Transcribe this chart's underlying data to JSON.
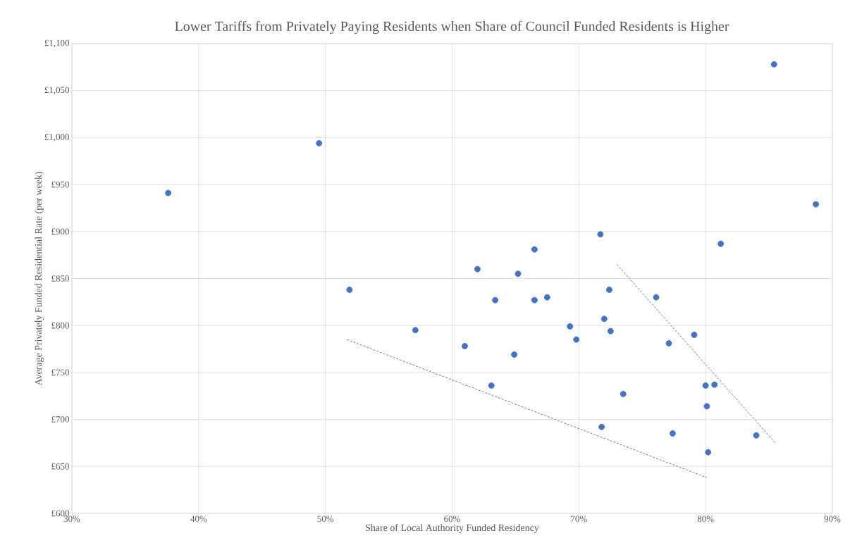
{
  "chart_data": {
    "type": "scatter",
    "title": "Lower Tariffs from Privately Paying Residents when Share of Council Funded Residents is Higher",
    "xlabel": "Share of Local Authority Funded Residency",
    "ylabel": "Average Privately Funded Residential Rate (per week)",
    "xlim": [
      30,
      90
    ],
    "xticks": [
      {
        "value": 30,
        "label": "30%"
      },
      {
        "value": 40,
        "label": "40%"
      },
      {
        "value": 50,
        "label": "50%"
      },
      {
        "value": 60,
        "label": "60%"
      },
      {
        "value": 70,
        "label": "70%"
      },
      {
        "value": 80,
        "label": "80%"
      },
      {
        "value": 90,
        "label": "90%"
      }
    ],
    "ylim": [
      600,
      1100
    ],
    "yticks": [
      {
        "value": 600,
        "label": "£600"
      },
      {
        "value": 650,
        "label": "£650"
      },
      {
        "value": 700,
        "label": "£700"
      },
      {
        "value": 750,
        "label": "£750"
      },
      {
        "value": 800,
        "label": "£800"
      },
      {
        "value": 850,
        "label": "£850"
      },
      {
        "value": 900,
        "label": "£900"
      },
      {
        "value": 950,
        "label": "£950"
      },
      {
        "value": 1000,
        "label": "£1,000"
      },
      {
        "value": 1050,
        "label": "£1,050"
      },
      {
        "value": 1100,
        "label": "£1,100"
      }
    ],
    "grid": true,
    "series": [
      {
        "color": "#4472c4",
        "marker": "circle",
        "x": [
          37.6,
          49.5,
          51.9,
          57.1,
          61.0,
          62.0,
          63.1,
          63.4,
          64.9,
          65.2,
          66.5,
          66.5,
          67.5,
          69.3,
          69.8,
          71.7,
          71.8,
          72.0,
          72.4,
          72.5,
          73.5,
          76.1,
          77.1,
          77.4,
          79.1,
          80.0,
          80.7,
          80.1,
          80.2,
          81.2,
          84.0,
          85.4,
          88.7
        ],
        "values": [
          941,
          994,
          838,
          795,
          778,
          860,
          736,
          827,
          769,
          855,
          827,
          881,
          830,
          799,
          785,
          897,
          692,
          807,
          838,
          794,
          727,
          830,
          781,
          685,
          790,
          736,
          737,
          714,
          665,
          887,
          683,
          1078,
          929
        ]
      },
      {
        "type": "line",
        "color": "#4472c4",
        "line_style": "dashed",
        "marker": "none",
        "x": [
          51.7,
          80.1
        ],
        "values": [
          785,
          638
        ]
      },
      {
        "type": "line",
        "color": "#4472c4",
        "line_style": "dashed",
        "marker": "none",
        "x": [
          73.0,
          85.5
        ],
        "values": [
          865,
          675
        ]
      }
    ]
  }
}
